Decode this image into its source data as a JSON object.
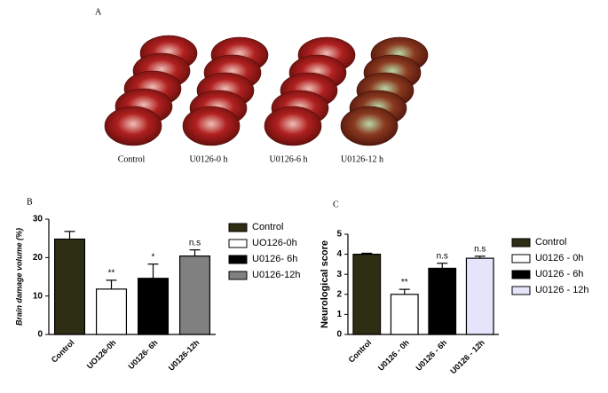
{
  "panel_a": {
    "label": "A",
    "captions": [
      "Control",
      "U0126-0 h",
      "U0126-6 h",
      "U0126-12 h"
    ]
  },
  "chart_data": [
    {
      "type": "bar",
      "panel_label": "B",
      "y_label": "Brain damage volume (%)",
      "categories": [
        "Control",
        "UO126-0h",
        "U0126- 6h",
        "U0126-12h"
      ],
      "values": [
        24.8,
        11.8,
        14.6,
        20.4
      ],
      "errors": [
        2.0,
        2.3,
        3.7,
        1.6
      ],
      "annotations": [
        null,
        "**",
        "*",
        "n.s"
      ],
      "colors": [
        "#2e2e14",
        "#ffffff",
        "#000000",
        "#808080"
      ],
      "ylim": [
        0,
        30
      ],
      "yticks": [
        0,
        10,
        20,
        30
      ],
      "legend": "right"
    },
    {
      "type": "bar",
      "panel_label": "C",
      "y_label": "Neurological score",
      "categories": [
        "Control",
        "U0126 - 0h",
        "U0126 - 6h",
        "U0126 - 12h"
      ],
      "values": [
        4.0,
        2.0,
        3.3,
        3.8
      ],
      "errors": [
        0.05,
        0.25,
        0.25,
        0.1
      ],
      "annotations": [
        null,
        "**",
        "n.s",
        "n.s"
      ],
      "colors": [
        "#2e2e14",
        "#ffffff",
        "#000000",
        "#e4e4fb"
      ],
      "ylim": [
        0,
        5
      ],
      "yticks": [
        0,
        1,
        2,
        3,
        4,
        5
      ],
      "legend": "right"
    }
  ]
}
